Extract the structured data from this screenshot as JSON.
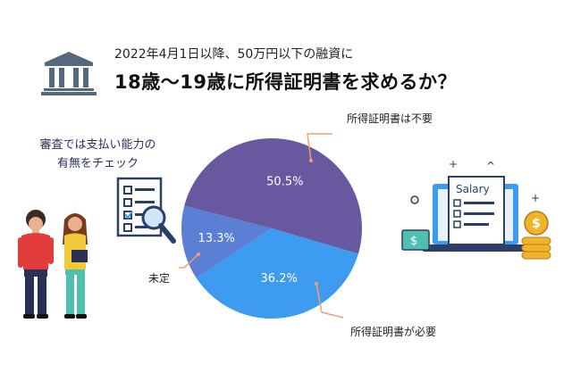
{
  "header": {
    "subtitle": "2022年4月1日以降、50万円以下の融資に",
    "title": "18歳〜19歳に所得証明書を求めるか？"
  },
  "note": {
    "line1": "審査では支払い能力の",
    "line2": "有無をチェック"
  },
  "icons": [
    "bank-icon",
    "checklist-magnifier-icon",
    "salary-laptop-icon",
    "people-illustration"
  ],
  "chart_data": {
    "type": "pie",
    "title": "",
    "slices": [
      {
        "label": "所得証明書は不要",
        "value": 50.5,
        "value_label": "50.5%",
        "color": "#67589f"
      },
      {
        "label": "所得証明書が必要",
        "value": 36.2,
        "value_label": "36.2%",
        "color": "#3d9cf0"
      },
      {
        "label": "未定",
        "value": 13.3,
        "value_label": "13.3%",
        "color": "#5b7fd4"
      }
    ],
    "legend": "callouts"
  },
  "illustration": {
    "salary_label": "Salary",
    "dollar_symbol": "$"
  }
}
